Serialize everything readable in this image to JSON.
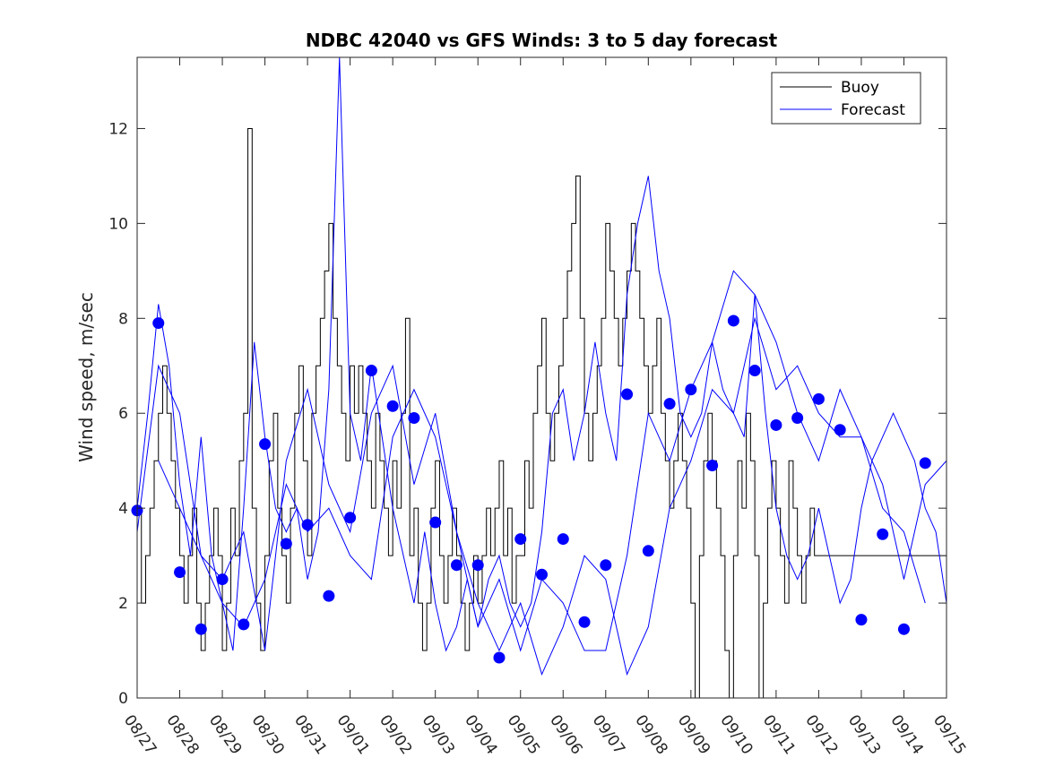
{
  "chart_data": {
    "type": "line",
    "title": "NDBC 42040 vs GFS Winds: 3 to 5 day forecast",
    "xlabel": "",
    "ylabel": "Wind speed, m/sec",
    "xlim": [
      0,
      19
    ],
    "ylim": [
      0,
      13.5
    ],
    "x_tick_labels": [
      "08/27",
      "08/28",
      "08/29",
      "08/30",
      "08/31",
      "09/01",
      "09/02",
      "09/03",
      "09/04",
      "09/05",
      "09/06",
      "09/07",
      "09/08",
      "09/09",
      "09/10",
      "09/11",
      "09/12",
      "09/13",
      "09/14",
      "09/15"
    ],
    "y_ticks": [
      0,
      2,
      4,
      6,
      8,
      10,
      12
    ],
    "legend": {
      "placement": "top-right",
      "entries": [
        "Buoy",
        "Forecast"
      ]
    },
    "colors": {
      "buoy": "#000000",
      "forecast": "#0000ff",
      "markers": "#0000ff"
    },
    "series": [
      {
        "name": "Buoy",
        "x": [
          0,
          0.1,
          0.2,
          0.3,
          0.4,
          0.5,
          0.6,
          0.7,
          0.8,
          0.9,
          1,
          1.1,
          1.2,
          1.3,
          1.4,
          1.5,
          1.6,
          1.7,
          1.8,
          1.9,
          2,
          2.1,
          2.2,
          2.3,
          2.4,
          2.5,
          2.6,
          2.7,
          2.8,
          2.9,
          3,
          3.1,
          3.2,
          3.3,
          3.4,
          3.5,
          3.6,
          3.7,
          3.8,
          3.9,
          4,
          4.1,
          4.2,
          4.3,
          4.4,
          4.5,
          4.6,
          4.7,
          4.8,
          4.9,
          5,
          5.1,
          5.2,
          5.3,
          5.4,
          5.5,
          5.6,
          5.7,
          5.8,
          5.9,
          6,
          6.1,
          6.2,
          6.3,
          6.4,
          6.5,
          6.6,
          6.7,
          6.8,
          6.9,
          7,
          7.1,
          7.2,
          7.3,
          7.4,
          7.5,
          7.6,
          7.7,
          7.8,
          7.9,
          8,
          8.1,
          8.2,
          8.3,
          8.4,
          8.5,
          8.6,
          8.7,
          8.8,
          8.9,
          9,
          9.1,
          9.2,
          9.3,
          9.4,
          9.5,
          9.6,
          9.7,
          9.8,
          9.9,
          10,
          10.1,
          10.2,
          10.3,
          10.4,
          10.5,
          10.6,
          10.7,
          10.8,
          10.9,
          11,
          11.1,
          11.2,
          11.3,
          11.4,
          11.5,
          11.6,
          11.7,
          11.8,
          11.9,
          12,
          12.1,
          12.2,
          12.3,
          12.4,
          12.5,
          12.6,
          12.7,
          12.8,
          12.9,
          13,
          13.1,
          13.2,
          13.3,
          13.4,
          13.5,
          13.6,
          13.7,
          13.8,
          13.9,
          14,
          14.1,
          14.2,
          14.3,
          14.4,
          14.5,
          14.6,
          14.7,
          14.8,
          14.9,
          15,
          15.1,
          15.2,
          15.3,
          15.4,
          15.5,
          15.6,
          15.7,
          15.8,
          15.9,
          16,
          16.1,
          16.2,
          16.3,
          16.4,
          16.5,
          16.6,
          16.7,
          16.8,
          16.9,
          17,
          17.1,
          17.2,
          17.3,
          17.4,
          17.5,
          17.6,
          17.7,
          17.8,
          17.9,
          18,
          18.1,
          18.2,
          18.3,
          18.4,
          18.5,
          18.6,
          18.7,
          18.8,
          18.9,
          19
        ],
        "values": [
          4,
          2,
          3,
          4,
          5,
          6,
          7,
          6,
          5,
          4,
          3,
          2,
          3,
          4,
          2,
          1,
          2,
          3,
          4,
          3,
          1,
          2,
          4,
          3,
          5,
          6,
          12,
          4,
          2,
          1,
          3,
          5,
          6,
          4,
          3,
          2,
          4,
          6,
          7,
          5,
          3,
          6,
          7,
          8,
          9,
          10,
          8,
          7,
          6,
          5,
          7,
          6,
          7,
          6,
          5,
          4,
          6,
          5,
          4,
          3,
          5,
          4,
          6,
          8,
          3,
          4,
          2,
          1,
          2,
          4,
          5,
          3,
          2,
          3,
          4,
          3,
          2,
          1,
          2,
          3,
          2,
          3,
          4,
          3,
          4,
          5,
          3,
          4,
          2,
          3,
          3,
          5,
          4,
          6,
          7,
          8,
          6,
          5,
          6,
          7,
          8,
          9,
          10,
          11,
          8,
          6,
          5,
          6,
          7,
          8,
          10,
          9,
          8,
          7,
          8,
          9,
          10,
          9,
          8,
          7,
          6,
          7,
          8,
          6,
          5,
          4,
          5,
          6,
          5,
          4,
          2,
          0,
          3,
          5,
          6,
          5,
          4,
          3,
          1,
          0,
          3,
          5,
          4,
          6,
          5,
          3,
          0,
          2,
          4,
          5,
          4,
          3,
          2,
          5,
          4,
          3,
          2,
          3,
          4,
          3,
          3,
          3,
          3,
          3,
          3,
          3,
          3,
          3,
          3,
          3,
          3,
          3,
          3,
          3,
          3,
          3,
          3,
          3,
          3,
          3,
          3,
          3,
          3,
          3,
          3,
          3,
          3,
          3,
          3,
          3,
          3
        ]
      },
      {
        "name": "Forecast",
        "x": [
          0,
          0.25,
          0.5,
          0.75,
          1,
          1.25,
          1.5,
          1.75,
          2,
          2.25,
          2.5,
          2.75,
          3,
          3.25,
          3.5,
          3.75,
          4,
          4.25,
          4.5,
          4.75,
          5,
          5.25,
          5.5,
          5.75,
          6,
          6.25,
          6.5,
          6.75,
          7,
          7.25,
          7.5,
          7.75,
          8,
          8.25,
          8.5,
          8.75,
          9,
          9.25,
          9.5,
          9.75,
          10,
          10.25,
          10.5,
          10.75,
          11,
          11.25,
          11.5,
          11.75,
          12,
          12.25,
          12.5,
          12.75,
          13,
          13.25,
          13.5,
          13.75,
          14,
          14.25,
          14.5,
          14.75,
          15,
          15.25,
          15.5,
          15.75,
          16,
          16.25,
          16.5,
          16.75,
          17,
          17.25,
          17.5,
          17.75,
          18,
          18.25,
          18.5,
          18.75,
          19
        ],
        "values": [
          4,
          6,
          8.3,
          7,
          4.5,
          3,
          5.5,
          3,
          2,
          1,
          4,
          7.5,
          5.5,
          4,
          3.5,
          4,
          2.5,
          3.5,
          6.5,
          13.5,
          6,
          5,
          7,
          5.5,
          4,
          3,
          2,
          3.5,
          2,
          1,
          1.5,
          2.5,
          1.5,
          2.5,
          3,
          2,
          1.5,
          2,
          3.5,
          6,
          6.5,
          5,
          6,
          7.5,
          6,
          5,
          8.5,
          10,
          11,
          9,
          8,
          6,
          5.5,
          6,
          7.5,
          6.5,
          6,
          5.5,
          8.5,
          6,
          4,
          3,
          2.5,
          3,
          4,
          3,
          2,
          2.5,
          4,
          5,
          5.5,
          6,
          5.5,
          5,
          4,
          3.5,
          2
        ]
      },
      {
        "name": "Forecast",
        "x": [
          0,
          0.5,
          1,
          1.5,
          2,
          2.5,
          3,
          3.5,
          4,
          4.5,
          5,
          5.5,
          6,
          6.5,
          7,
          7.5,
          8,
          8.5,
          9,
          9.5,
          10,
          10.5,
          11,
          11.5,
          12,
          12.5,
          13,
          13.5,
          14,
          14.5,
          15,
          15.5,
          16,
          16.5,
          17,
          17.5,
          18,
          18.5,
          19
        ],
        "values": [
          3.5,
          7,
          6,
          3,
          2.5,
          3.5,
          1,
          5,
          6.5,
          4.5,
          3.5,
          6,
          7,
          4.5,
          6,
          3.5,
          1.5,
          2.5,
          1,
          2.5,
          2,
          1,
          1,
          3,
          6,
          5,
          6.5,
          7.5,
          9,
          8.5,
          7.5,
          6,
          5,
          6.5,
          5.5,
          4.5,
          2.5,
          4.5,
          5
        ]
      },
      {
        "name": "Forecast",
        "x": [
          0.5,
          1,
          1.5,
          2,
          2.5,
          3,
          3.5,
          4,
          4.5,
          5,
          5.5,
          6,
          6.5,
          7,
          7.5,
          8,
          8.5,
          9,
          9.5,
          10,
          10.5,
          11,
          11.5,
          12,
          12.5,
          13,
          13.5,
          14,
          14.5,
          15,
          15.5,
          16,
          16.5,
          17,
          17.5,
          18,
          18.5
        ],
        "values": [
          5,
          4,
          3,
          2,
          1.5,
          2.5,
          4.5,
          3.5,
          4,
          3,
          2.5,
          5.5,
          6.5,
          5.5,
          3.5,
          2,
          1,
          2,
          0.5,
          1.5,
          3,
          2.5,
          0.5,
          1.5,
          4,
          5,
          6.5,
          6,
          8,
          6.5,
          7,
          6,
          5.5,
          5.5,
          4,
          3.5,
          2
        ]
      }
    ],
    "markers": {
      "name": "Forecast points",
      "x": [
        0,
        0.5,
        1,
        1.5,
        2,
        2.5,
        3,
        3.5,
        4,
        4.5,
        5,
        5.5,
        6,
        6.5,
        7,
        7.5,
        8,
        8.5,
        9,
        9.5,
        10,
        10.5,
        11,
        11.5,
        12,
        12.5,
        13,
        13.5,
        14,
        14.5,
        15,
        15.5,
        16,
        16.5,
        17,
        17.5,
        18,
        18.5
      ],
      "values": [
        3.95,
        7.9,
        2.65,
        1.45,
        2.5,
        1.55,
        5.35,
        3.25,
        3.65,
        2.15,
        3.8,
        6.9,
        6.15,
        5.9,
        3.7,
        2.8,
        2.8,
        0.85,
        3.35,
        2.6,
        3.35,
        1.6,
        2.8,
        6.4,
        3.1,
        6.2,
        6.5,
        4.9,
        7.95,
        6.9,
        5.75,
        5.9,
        6.3,
        5.65,
        1.65,
        3.45,
        1.45,
        4.95
      ]
    }
  }
}
